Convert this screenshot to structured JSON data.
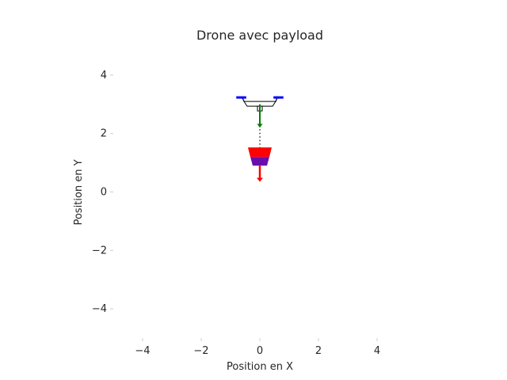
{
  "chart_data": {
    "type": "scatter",
    "title": "Drone avec payload",
    "xlabel": "Position en X",
    "ylabel": "Position en Y",
    "xlim": [
      -5,
      5
    ],
    "ylim": [
      -5,
      5
    ],
    "x_ticks": [
      -4,
      -2,
      0,
      2,
      4
    ],
    "y_ticks": [
      4,
      2,
      0,
      -2,
      -4
    ],
    "x_tick_labels": [
      "−4",
      "−2",
      "0",
      "2",
      "4"
    ],
    "y_tick_labels": [
      "4",
      "2",
      "0",
      "−2",
      "−4"
    ],
    "grid": false,
    "drone": {
      "x": 0,
      "y": 3.1,
      "arm_half_width": 0.75,
      "color_body": "#ffffff",
      "color_outline": "#000000",
      "color_rotor": "#0000ff"
    },
    "drone_force_arrow": {
      "x": 0,
      "y_start": 3.0,
      "y_end": 2.2,
      "color": "#008000"
    },
    "cable": {
      "x": 0,
      "y_start": 3.0,
      "y_end": 1.5,
      "style": "dotted",
      "color": "#000000"
    },
    "payload": {
      "x": 0,
      "y": 1.2,
      "color_top": "#ff0000",
      "color_bottom": "#6a0dad"
    },
    "payload_force_arrow": {
      "x": 0,
      "y_start": 0.9,
      "y_end": 0.35,
      "color": "#ff0000"
    }
  }
}
